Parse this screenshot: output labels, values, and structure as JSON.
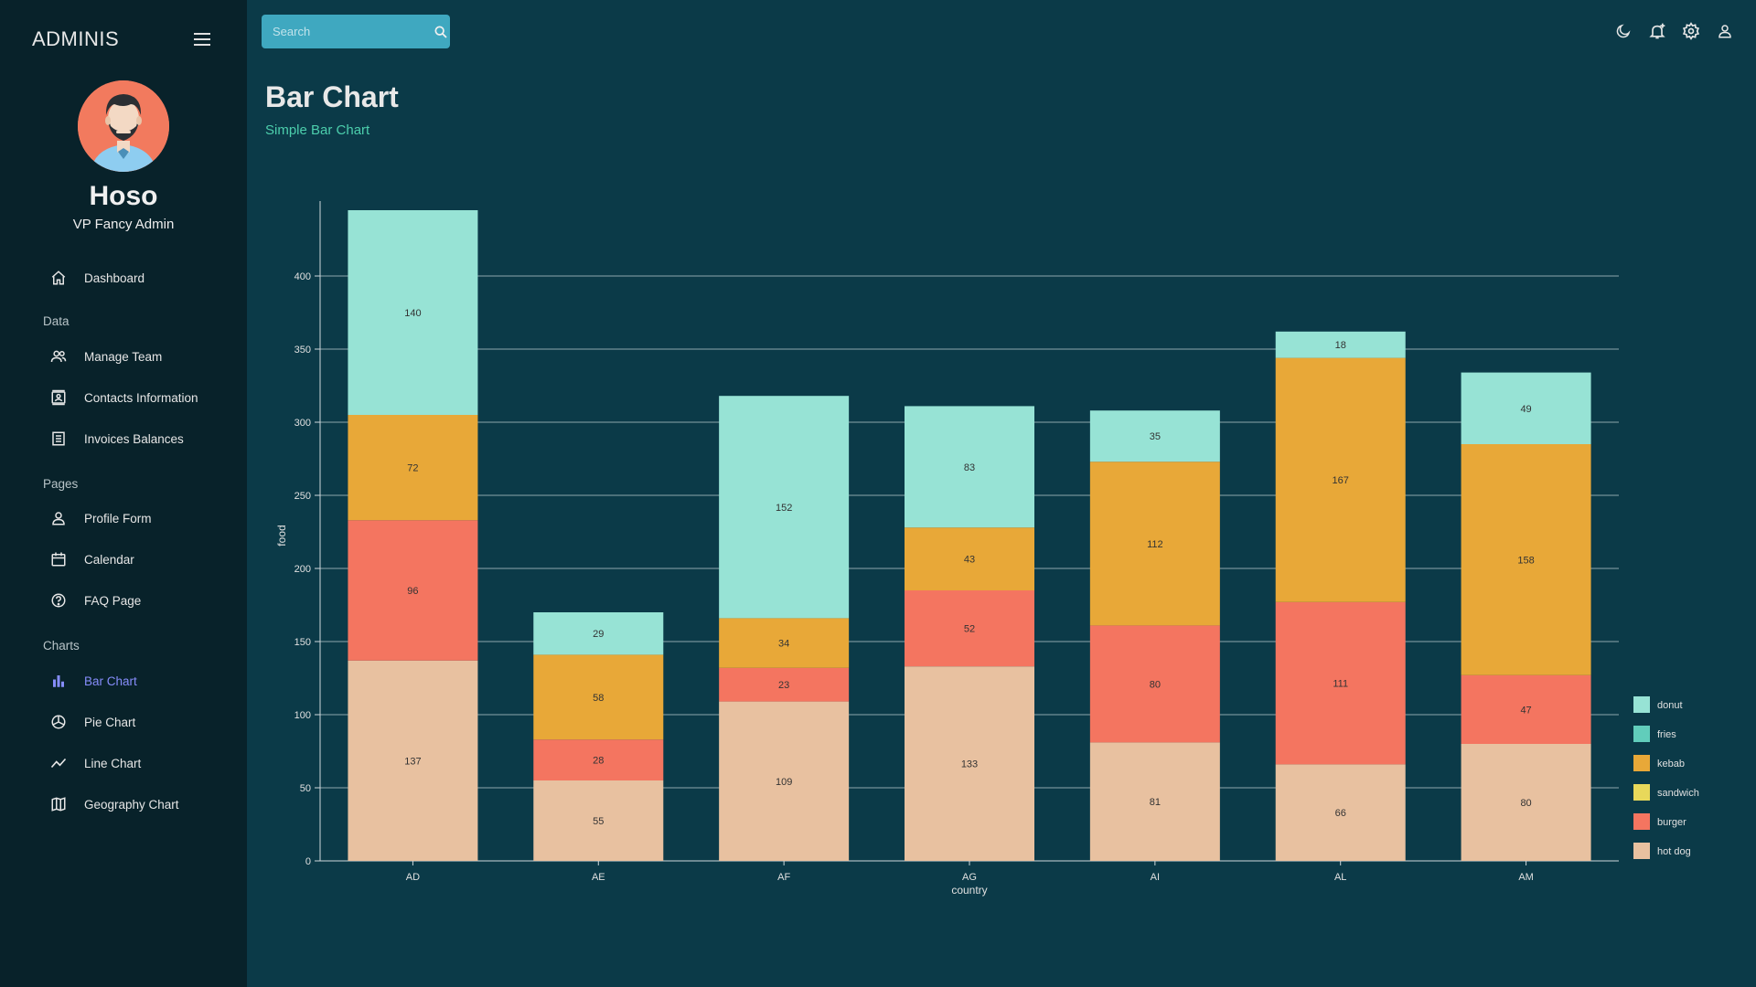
{
  "sidebar": {
    "brand": "ADMINIS",
    "user": {
      "name": "Hoso",
      "role": "VP Fancy Admin"
    },
    "items": {
      "dashboard": "Dashboard",
      "section_data": "Data",
      "manage_team": "Manage Team",
      "contacts": "Contacts Information",
      "invoices": "Invoices Balances",
      "section_pages": "Pages",
      "profile": "Profile Form",
      "calendar": "Calendar",
      "faq": "FAQ Page",
      "section_charts": "Charts",
      "bar_chart": "Bar Chart",
      "pie_chart": "Pie Chart",
      "line_chart": "Line Chart",
      "geography_chart": "Geography Chart"
    },
    "active_color": "#868dfb"
  },
  "topbar": {
    "search_placeholder": "Search",
    "icons": [
      "dark-mode-icon",
      "notifications-icon",
      "settings-icon",
      "person-icon"
    ]
  },
  "header": {
    "title": "Bar Chart",
    "subtitle": "Simple Bar Chart"
  },
  "chart_data": {
    "type": "bar",
    "stacked": true,
    "categories": [
      "AD",
      "AE",
      "AF",
      "AG",
      "AI",
      "AL",
      "AM"
    ],
    "series": [
      {
        "name": "hot dog",
        "color": "#e8c1a0",
        "values": [
          137,
          55,
          109,
          133,
          81,
          66,
          80
        ]
      },
      {
        "name": "burger",
        "color": "#f47560",
        "values": [
          96,
          28,
          23,
          52,
          80,
          111,
          47
        ]
      },
      {
        "name": "sandwich",
        "color": "#e8d85a",
        "values": [
          0,
          0,
          0,
          0,
          0,
          0,
          0
        ]
      },
      {
        "name": "kebab",
        "color": "#e8a838",
        "values": [
          72,
          58,
          34,
          43,
          112,
          167,
          158
        ]
      },
      {
        "name": "fries",
        "color": "#61cdbb",
        "values": [
          0,
          0,
          0,
          0,
          0,
          0,
          0
        ]
      },
      {
        "name": "donut",
        "color": "#97e3d5",
        "values": [
          140,
          29,
          152,
          83,
          35,
          18,
          49
        ]
      }
    ],
    "legend_order": [
      "donut",
      "fries",
      "kebab",
      "sandwich",
      "burger",
      "hot dog"
    ],
    "xlabel": "country",
    "ylabel": "food",
    "ylim": [
      0,
      445
    ],
    "yticks": [
      0,
      50,
      100,
      150,
      200,
      250,
      300,
      350,
      400
    ],
    "grid": true,
    "legend_position": "bottom-right"
  }
}
